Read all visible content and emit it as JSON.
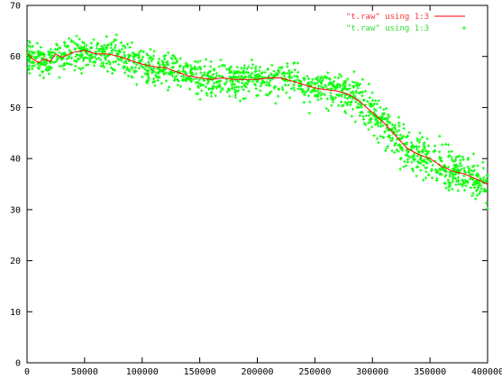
{
  "chart_data": {
    "type": "scatter",
    "title": "",
    "xlabel": "",
    "ylabel": "",
    "xlim": [
      0,
      400000
    ],
    "ylim": [
      0,
      70
    ],
    "x_ticks": [
      0,
      50000,
      100000,
      150000,
      200000,
      250000,
      300000,
      350000,
      400000
    ],
    "y_ticks": [
      0,
      10,
      20,
      30,
      40,
      50,
      60,
      70
    ],
    "x_tick_labels": [
      "0",
      "50000",
      "100000",
      "150000",
      "200000",
      "250000",
      "300000",
      "350000",
      "400000"
    ],
    "y_tick_labels": [
      "0",
      "10",
      "20",
      "30",
      "40",
      "50",
      "60",
      "70"
    ],
    "grid": false,
    "legend_position": "top-right",
    "series": [
      {
        "name": "\"t.raw\" using 1:3",
        "style": "line",
        "color": "#ff0000",
        "x": [
          0,
          5000,
          10000,
          15000,
          20000,
          25000,
          30000,
          40000,
          50000,
          60000,
          70000,
          80000,
          90000,
          100000,
          110000,
          120000,
          130000,
          140000,
          150000,
          160000,
          170000,
          180000,
          190000,
          200000,
          210000,
          220000,
          230000,
          240000,
          250000,
          260000,
          270000,
          280000,
          290000,
          300000,
          310000,
          320000,
          330000,
          340000,
          350000,
          360000,
          370000,
          380000,
          390000,
          400000
        ],
        "y": [
          60.5,
          59.5,
          58.8,
          59.5,
          59.0,
          60.5,
          59.8,
          60.8,
          61.2,
          60.5,
          60.5,
          60.0,
          59.2,
          58.5,
          58.0,
          57.8,
          57.0,
          56.2,
          55.8,
          55.5,
          55.8,
          55.5,
          55.5,
          55.5,
          55.8,
          55.8,
          55.2,
          54.5,
          53.8,
          53.5,
          53.2,
          52.5,
          51.0,
          49.0,
          47.0,
          44.5,
          42.0,
          40.8,
          40.0,
          38.5,
          37.5,
          37.0,
          36.0,
          35.0
        ]
      },
      {
        "name": "\"t.raw\" using 1:3",
        "style": "points",
        "color": "#00ff00",
        "x": [],
        "y": []
      }
    ]
  },
  "colors": {
    "line": "#ff0000",
    "points": "#00ff00",
    "axes": "#000000"
  }
}
